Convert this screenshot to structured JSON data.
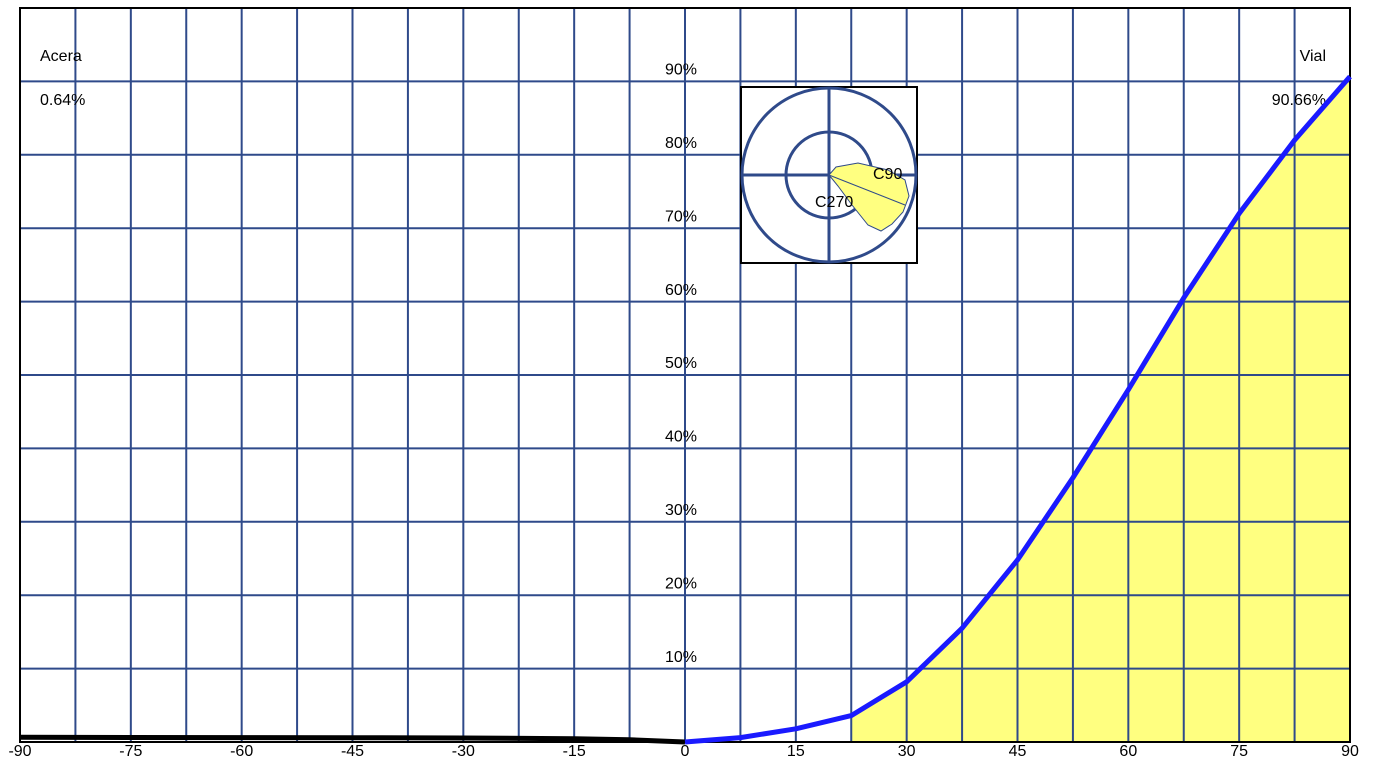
{
  "chart_data": {
    "type": "line",
    "annotations": {
      "left_title": "Acera",
      "left_value": "0.64%",
      "right_title": "Vial",
      "right_value": "90.66%",
      "polar_a": "C90",
      "polar_b": "C270"
    },
    "series": [
      {
        "color": "#000000",
        "x": [
          -90,
          -75,
          -60,
          -45,
          -30,
          -15,
          -7.5,
          0
        ],
        "values": [
          0.64,
          0.62,
          0.6,
          0.58,
          0.55,
          0.45,
          0.3,
          0
        ]
      },
      {
        "color": "#1a1aff",
        "x": [
          0,
          7.5,
          15,
          22.5,
          30,
          37.5,
          45,
          52.5,
          60,
          67.5,
          75,
          82.5,
          90
        ],
        "values": [
          0,
          0.6,
          1.8,
          3.6,
          8.2,
          15.5,
          24.8,
          36,
          48,
          60.5,
          72,
          82,
          90.66
        ]
      }
    ],
    "fill_from": 22.5,
    "fill_color": "#ffff80",
    "xlim": [
      -90,
      90
    ],
    "ylim": [
      0,
      100
    ],
    "xticks": [
      -90,
      -75,
      -60,
      -45,
      -30,
      -15,
      0,
      15,
      30,
      45,
      60,
      75,
      90
    ],
    "xgrid": [
      -82.5,
      -75,
      -67.5,
      -60,
      -52.5,
      -45,
      -37.5,
      -30,
      -22.5,
      -15,
      -7.5,
      0,
      7.5,
      15,
      22.5,
      30,
      37.5,
      45,
      52.5,
      60,
      67.5,
      75,
      82.5
    ],
    "yticks": [
      {
        "value": 10,
        "label": "10%"
      },
      {
        "value": 20,
        "label": "20%"
      },
      {
        "value": 30,
        "label": "30%"
      },
      {
        "value": 40,
        "label": "40%"
      },
      {
        "value": 50,
        "label": "50%"
      },
      {
        "value": 60,
        "label": "60%"
      },
      {
        "value": 70,
        "label": "70%"
      },
      {
        "value": 80,
        "label": "80%"
      },
      {
        "value": 90,
        "label": "90%"
      }
    ],
    "grid": true,
    "grid_color": "#2f4a8a"
  }
}
